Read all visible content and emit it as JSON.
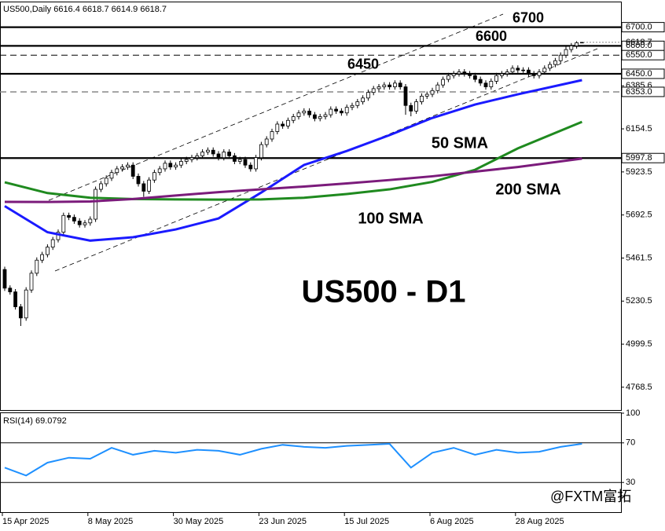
{
  "chart_data": [
    {
      "type": "candlestick",
      "symbol": "US500,Daily",
      "title": "US500 - D1",
      "categories": [
        "15 Apr 2025",
        null,
        null,
        null,
        null,
        null,
        null,
        null,
        null,
        null,
        null,
        null,
        null,
        null,
        null,
        null,
        "8 May 2025",
        null,
        null,
        null,
        null,
        null,
        null,
        null,
        null,
        null,
        null,
        null,
        null,
        null,
        null,
        null,
        "30 May 2025",
        null,
        null,
        null,
        null,
        null,
        null,
        null,
        null,
        null,
        null,
        null,
        null,
        null,
        null,
        null,
        "23 Jun 2025",
        null,
        null,
        null,
        null,
        null,
        null,
        null,
        null,
        null,
        null,
        null,
        null,
        null,
        null,
        null,
        "15 Jul 2025",
        null,
        null,
        null,
        null,
        null,
        null,
        null,
        null,
        null,
        null,
        null,
        null,
        null,
        null,
        null,
        "6 Aug 2025",
        null,
        null,
        null,
        null,
        null,
        null,
        null,
        null,
        null,
        null,
        null,
        null,
        null,
        null,
        null,
        "28 Aug 2025",
        null,
        null,
        null,
        null,
        null,
        null,
        null,
        null,
        null,
        null,
        null,
        null
      ],
      "open": [
        5400,
        5300,
        5280,
        5200,
        5140,
        5290,
        5380,
        5450,
        5480,
        5520,
        5560,
        5600,
        5690,
        5680,
        5660,
        5640,
        5650,
        5670,
        5830,
        5860,
        5890,
        5920,
        5940,
        5950,
        5960,
        5900,
        5860,
        5820,
        5880,
        5920,
        5940,
        5970,
        5950,
        5960,
        5980,
        5990,
        6000,
        6010,
        6030,
        6040,
        6020,
        6000,
        6030,
        6010,
        5980,
        5990,
        5960,
        5940,
        6000,
        6070,
        6100,
        6140,
        6180,
        6170,
        6200,
        6220,
        6240,
        6250,
        6230,
        6210,
        6220,
        6230,
        6260,
        6250,
        6240,
        6270,
        6280,
        6300,
        6320,
        6350,
        6370,
        6380,
        6390,
        6380,
        6400,
        6380,
        6280,
        6250,
        6300,
        6330,
        6340,
        6360,
        6390,
        6420,
        6440,
        6450,
        6460,
        6450,
        6440,
        6420,
        6400,
        6380,
        6410,
        6440,
        6450,
        6460,
        6480,
        6470,
        6470,
        6450,
        6440,
        6460,
        6480,
        6500,
        6520,
        6550,
        6580,
        6600,
        6616.4
      ],
      "high": [
        5415,
        5315,
        5295,
        5215,
        5305,
        5395,
        5465,
        5495,
        5535,
        5575,
        5615,
        5705,
        5705,
        5695,
        5675,
        5665,
        5685,
        5845,
        5875,
        5905,
        5935,
        5955,
        5965,
        5975,
        5975,
        5915,
        5875,
        5895,
        5935,
        5955,
        5985,
        5985,
        5975,
        5995,
        6005,
        6015,
        6025,
        6045,
        6055,
        6055,
        6035,
        6045,
        6045,
        6025,
        6005,
        6005,
        5975,
        6015,
        6085,
        6115,
        6155,
        6195,
        6195,
        6215,
        6235,
        6255,
        6265,
        6265,
        6245,
        6235,
        6245,
        6275,
        6275,
        6265,
        6285,
        6295,
        6315,
        6335,
        6365,
        6385,
        6395,
        6405,
        6405,
        6415,
        6415,
        6395,
        6295,
        6315,
        6345,
        6355,
        6375,
        6405,
        6435,
        6455,
        6465,
        6475,
        6475,
        6465,
        6455,
        6435,
        6415,
        6425,
        6455,
        6465,
        6475,
        6495,
        6495,
        6485,
        6485,
        6465,
        6475,
        6495,
        6515,
        6535,
        6565,
        6595,
        6615,
        6625,
        6618.7
      ],
      "low": [
        5285,
        5265,
        5185,
        5097,
        5125,
        5275,
        5365,
        5435,
        5465,
        5505,
        5545,
        5585,
        5665,
        5645,
        5625,
        5625,
        5635,
        5655,
        5815,
        5845,
        5875,
        5905,
        5925,
        5935,
        5885,
        5845,
        5790,
        5805,
        5865,
        5905,
        5925,
        5935,
        5935,
        5945,
        5965,
        5975,
        5985,
        5995,
        6015,
        6005,
        5985,
        5985,
        5995,
        5965,
        5965,
        5945,
        5925,
        5925,
        5985,
        6055,
        6085,
        6125,
        6155,
        6155,
        6185,
        6205,
        6225,
        6215,
        6195,
        6195,
        6205,
        6215,
        6235,
        6225,
        6225,
        6255,
        6265,
        6285,
        6305,
        6335,
        6355,
        6365,
        6365,
        6365,
        6365,
        6230,
        6222,
        6235,
        6285,
        6315,
        6325,
        6345,
        6375,
        6405,
        6425,
        6435,
        6435,
        6425,
        6405,
        6385,
        6365,
        6365,
        6395,
        6425,
        6435,
        6445,
        6455,
        6455,
        6435,
        6425,
        6425,
        6445,
        6465,
        6485,
        6505,
        6535,
        6565,
        6585,
        6614.9
      ],
      "close": [
        5300,
        5280,
        5200,
        5140,
        5290,
        5380,
        5450,
        5480,
        5520,
        5560,
        5600,
        5690,
        5680,
        5660,
        5640,
        5650,
        5670,
        5830,
        5860,
        5890,
        5920,
        5940,
        5950,
        5960,
        5900,
        5860,
        5820,
        5880,
        5920,
        5940,
        5970,
        5950,
        5960,
        5980,
        5990,
        6000,
        6010,
        6030,
        6040,
        6020,
        6000,
        6030,
        6010,
        5980,
        5990,
        5960,
        5940,
        6000,
        6070,
        6100,
        6140,
        6180,
        6170,
        6200,
        6220,
        6240,
        6250,
        6230,
        6210,
        6220,
        6230,
        6260,
        6250,
        6240,
        6270,
        6280,
        6300,
        6320,
        6350,
        6370,
        6380,
        6390,
        6380,
        6400,
        6380,
        6280,
        6250,
        6300,
        6330,
        6340,
        6360,
        6390,
        6420,
        6440,
        6450,
        6460,
        6450,
        6440,
        6420,
        6400,
        6380,
        6410,
        6440,
        6450,
        6460,
        6480,
        6470,
        6470,
        6450,
        6440,
        6460,
        6480,
        6500,
        6520,
        6550,
        6580,
        6600,
        6616.4,
        6618.7
      ],
      "up_color": "#ffffff",
      "down_color": "#000000",
      "ylim": [
        4646,
        6829
      ],
      "yticks": [
        4768.5,
        4999.5,
        5230.5,
        5461.5,
        5692.5,
        5923.5,
        6154.5,
        6385.6
      ],
      "levels": [
        {
          "value": 6700,
          "label": "6700.0",
          "style": "solid",
          "annotated": true
        },
        {
          "value": 6600,
          "label": "6600.0",
          "style": "solid",
          "annotated": true
        },
        {
          "value": 6550,
          "label": "6550.0",
          "style": "dashed",
          "annotated": false
        },
        {
          "value": 6450,
          "label": "6450.0",
          "style": "solid",
          "annotated": true
        },
        {
          "value": 6353,
          "label": "6353.0",
          "style": "dashed-gray",
          "annotated": false
        },
        {
          "value": 5997.8,
          "style": "solid",
          "annotated": false
        }
      ],
      "series": [
        {
          "name": "50 SMA",
          "color": "#1a1aff",
          "x": [
            0,
            8,
            16,
            24,
            32,
            40,
            48,
            56,
            64,
            72,
            80,
            88,
            96,
            108
          ],
          "values": [
            5740,
            5600,
            5555,
            5573,
            5615,
            5674,
            5813,
            5961,
            6036,
            6121,
            6213,
            6285,
            6340,
            6416
          ]
        },
        {
          "name": "100 SMA",
          "color": "#1f8a1f",
          "x": [
            0,
            8,
            16,
            24,
            32,
            40,
            48,
            56,
            64,
            72,
            80,
            88,
            96,
            108
          ],
          "values": [
            5868,
            5810,
            5785,
            5778,
            5776,
            5775,
            5776,
            5785,
            5805,
            5830,
            5870,
            5935,
            6050,
            6192
          ]
        },
        {
          "name": "200 SMA",
          "color": "#7b1b7b",
          "x": [
            0,
            8,
            16,
            24,
            32,
            40,
            48,
            56,
            64,
            72,
            80,
            88,
            96,
            108
          ],
          "values": [
            5763,
            5762,
            5765,
            5778,
            5797,
            5815,
            5830,
            5845,
            5862,
            5880,
            5900,
            5925,
            5950,
            5995
          ]
        }
      ]
    },
    {
      "type": "line",
      "title": "RSI(14)",
      "color": "#1e90ff",
      "x": [
        0,
        4,
        8,
        12,
        16,
        20,
        24,
        28,
        32,
        36,
        40,
        44,
        48,
        52,
        56,
        60,
        64,
        68,
        72,
        76,
        80,
        84,
        88,
        92,
        96,
        100,
        104,
        108
      ],
      "values": [
        45,
        37,
        50,
        55,
        54,
        65,
        58,
        62,
        60,
        63,
        62,
        58,
        64,
        68,
        66,
        65,
        67,
        68,
        69,
        45,
        60,
        65,
        58,
        63,
        60,
        61,
        66,
        69.0792
      ],
      "ylim": [
        0,
        100
      ],
      "yticks": [
        100,
        70,
        30
      ],
      "levels": [
        70,
        30
      ]
    }
  ],
  "watermark": "@FXTM富拓"
}
